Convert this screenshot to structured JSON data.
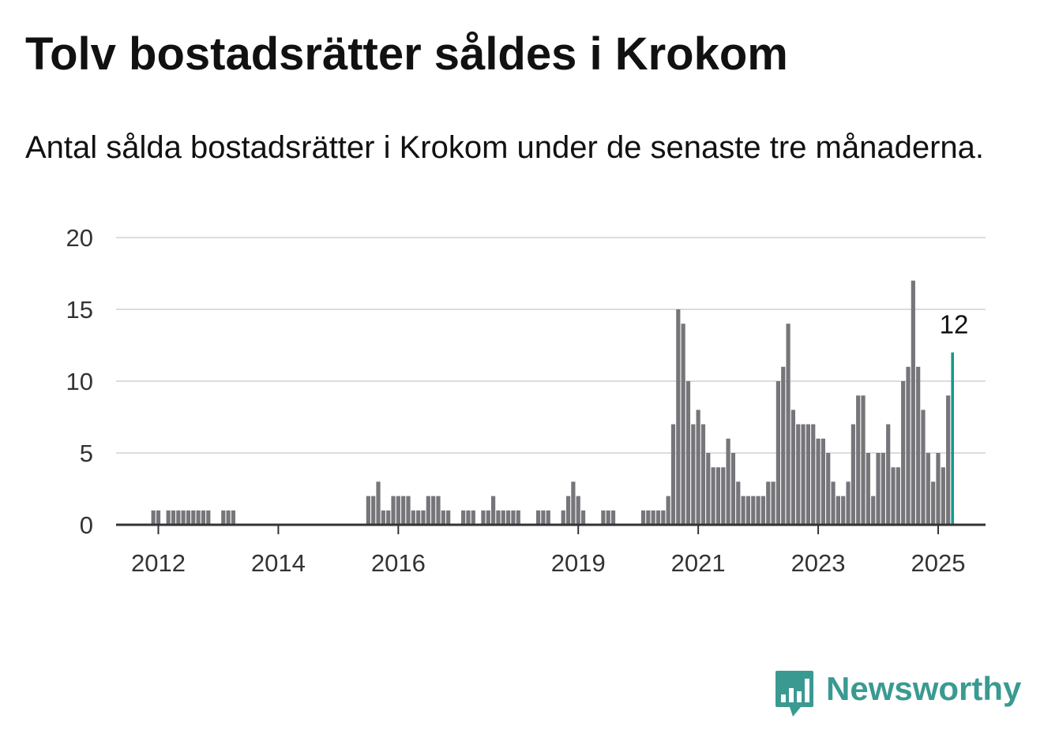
{
  "title": "Tolv bostadsrätter såldes i Krokom",
  "subtitle": "Antal sålda bostadsrätter i Krokom under de senaste tre månaderna.",
  "brand": {
    "name": "Newsworthy",
    "color": "#3a9a92",
    "icon": "bar-chart-speech-bubble-icon"
  },
  "chart_data": {
    "type": "bar",
    "title": "Tolv bostadsrätter såldes i Krokom",
    "subtitle": "Antal sålda bostadsrätter i Krokom under de senaste tre månaderna.",
    "x_axis": {
      "unit": "month",
      "range": [
        "2011-04",
        "2025-02"
      ],
      "ticks": [
        {
          "label": "2012",
          "month": "2012-01"
        },
        {
          "label": "2014",
          "month": "2014-01"
        },
        {
          "label": "2016",
          "month": "2016-01"
        },
        {
          "label": "2019",
          "month": "2019-01"
        },
        {
          "label": "2021",
          "month": "2021-01"
        },
        {
          "label": "2023",
          "month": "2023-01"
        },
        {
          "label": "2025",
          "month": "2025-01"
        }
      ]
    },
    "y_axis": {
      "range": [
        0,
        20
      ],
      "ticks": [
        0,
        5,
        10,
        15,
        20
      ]
    },
    "grid": true,
    "bar_color": "#75757a",
    "highlight_color": "#15998f",
    "highlight_label": "12",
    "points": [
      [
        "2011-12",
        1
      ],
      [
        "2012-01",
        1
      ],
      [
        "2012-03",
        1
      ],
      [
        "2012-04",
        1
      ],
      [
        "2012-05",
        1
      ],
      [
        "2012-06",
        1
      ],
      [
        "2012-07",
        1
      ],
      [
        "2012-08",
        1
      ],
      [
        "2012-09",
        1
      ],
      [
        "2012-10",
        1
      ],
      [
        "2012-11",
        1
      ],
      [
        "2013-02",
        1
      ],
      [
        "2013-03",
        1
      ],
      [
        "2013-04",
        1
      ],
      [
        "2015-07",
        2
      ],
      [
        "2015-08",
        2
      ],
      [
        "2015-09",
        3
      ],
      [
        "2015-10",
        1
      ],
      [
        "2015-11",
        1
      ],
      [
        "2015-12",
        2
      ],
      [
        "2016-01",
        2
      ],
      [
        "2016-02",
        2
      ],
      [
        "2016-03",
        2
      ],
      [
        "2016-04",
        1
      ],
      [
        "2016-05",
        1
      ],
      [
        "2016-06",
        1
      ],
      [
        "2016-07",
        2
      ],
      [
        "2016-08",
        2
      ],
      [
        "2016-09",
        2
      ],
      [
        "2016-10",
        1
      ],
      [
        "2016-11",
        1
      ],
      [
        "2017-02",
        1
      ],
      [
        "2017-03",
        1
      ],
      [
        "2017-04",
        1
      ],
      [
        "2017-06",
        1
      ],
      [
        "2017-07",
        1
      ],
      [
        "2017-08",
        2
      ],
      [
        "2017-09",
        1
      ],
      [
        "2017-10",
        1
      ],
      [
        "2017-11",
        1
      ],
      [
        "2017-12",
        1
      ],
      [
        "2018-01",
        1
      ],
      [
        "2018-05",
        1
      ],
      [
        "2018-06",
        1
      ],
      [
        "2018-07",
        1
      ],
      [
        "2018-10",
        1
      ],
      [
        "2018-11",
        2
      ],
      [
        "2018-12",
        3
      ],
      [
        "2019-01",
        2
      ],
      [
        "2019-02",
        1
      ],
      [
        "2019-06",
        1
      ],
      [
        "2019-07",
        1
      ],
      [
        "2019-08",
        1
      ],
      [
        "2020-02",
        1
      ],
      [
        "2020-03",
        1
      ],
      [
        "2020-04",
        1
      ],
      [
        "2020-05",
        1
      ],
      [
        "2020-06",
        1
      ],
      [
        "2020-07",
        2
      ],
      [
        "2020-08",
        7
      ],
      [
        "2020-09",
        15
      ],
      [
        "2020-10",
        14
      ],
      [
        "2020-11",
        10
      ],
      [
        "2020-12",
        7
      ],
      [
        "2021-01",
        8
      ],
      [
        "2021-02",
        7
      ],
      [
        "2021-03",
        5
      ],
      [
        "2021-04",
        4
      ],
      [
        "2021-05",
        4
      ],
      [
        "2021-06",
        4
      ],
      [
        "2021-07",
        6
      ],
      [
        "2021-08",
        5
      ],
      [
        "2021-09",
        3
      ],
      [
        "2021-10",
        2
      ],
      [
        "2021-11",
        2
      ],
      [
        "2021-12",
        2
      ],
      [
        "2022-01",
        2
      ],
      [
        "2022-02",
        2
      ],
      [
        "2022-03",
        3
      ],
      [
        "2022-04",
        3
      ],
      [
        "2022-05",
        10
      ],
      [
        "2022-06",
        11
      ],
      [
        "2022-07",
        14
      ],
      [
        "2022-08",
        8
      ],
      [
        "2022-09",
        7
      ],
      [
        "2022-10",
        7
      ],
      [
        "2022-11",
        7
      ],
      [
        "2022-12",
        7
      ],
      [
        "2023-01",
        6
      ],
      [
        "2023-02",
        6
      ],
      [
        "2023-03",
        5
      ],
      [
        "2023-04",
        3
      ],
      [
        "2023-05",
        2
      ],
      [
        "2023-06",
        2
      ],
      [
        "2023-07",
        3
      ],
      [
        "2023-08",
        7
      ],
      [
        "2023-09",
        9
      ],
      [
        "2023-10",
        9
      ],
      [
        "2023-11",
        5
      ],
      [
        "2023-12",
        2
      ],
      [
        "2024-01",
        5
      ],
      [
        "2024-02",
        5
      ],
      [
        "2024-03",
        7
      ],
      [
        "2024-04",
        4
      ],
      [
        "2024-05",
        4
      ],
      [
        "2024-06",
        10
      ],
      [
        "2024-07",
        11
      ],
      [
        "2024-08",
        17
      ],
      [
        "2024-09",
        11
      ],
      [
        "2024-10",
        8
      ],
      [
        "2024-11",
        5
      ],
      [
        "2024-12",
        3
      ],
      [
        "2025-01",
        5
      ],
      [
        "2025-02",
        4
      ],
      [
        "2025-03",
        9
      ],
      [
        "2025-04",
        12
      ]
    ]
  }
}
